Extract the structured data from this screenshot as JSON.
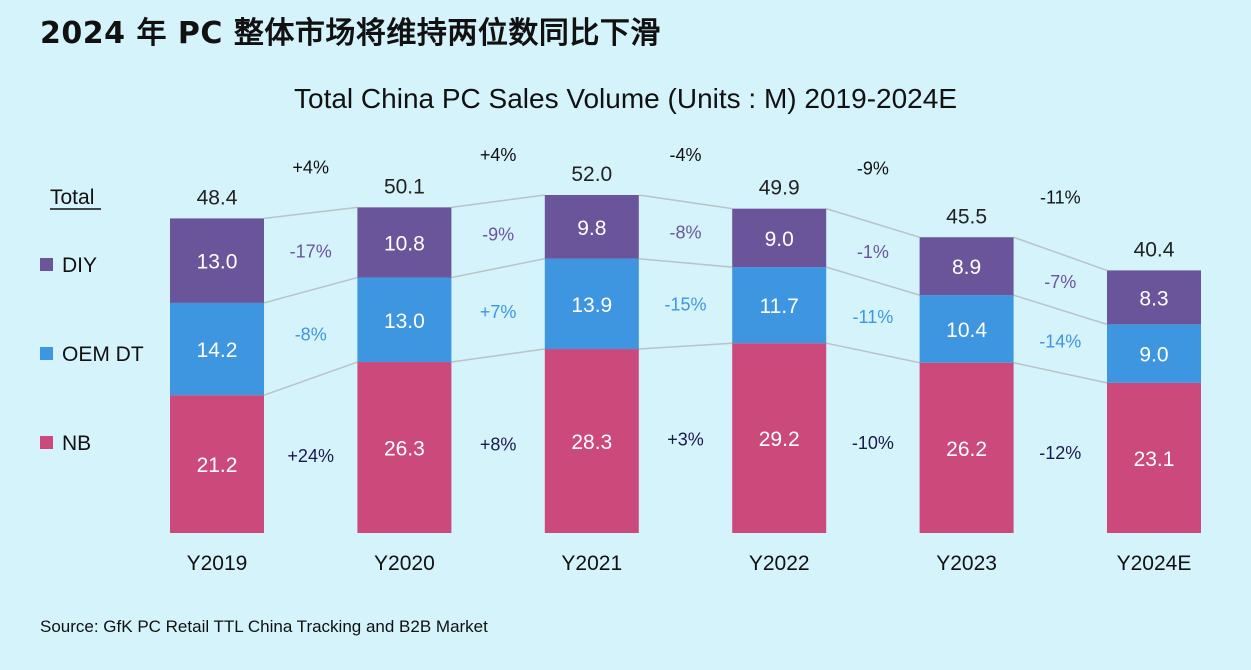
{
  "page": {
    "title": "2024 年 PC 整体市场将维持两位数同比下滑",
    "source": "Source: GfK PC Retail TTL China Tracking and B2B Market"
  },
  "chart_data": {
    "type": "bar",
    "stacked": true,
    "title": "Total China PC Sales Volume (Units : M)  2019-2024E",
    "categories": [
      "Y2019",
      "Y2020",
      "Y2021",
      "Y2022",
      "Y2023",
      "Y2024E"
    ],
    "legend_title": "Total",
    "legend_position": "left",
    "totals": [
      "48.4",
      "50.1",
      "52.0",
      "49.9",
      "45.5",
      "40.4"
    ],
    "total_growth": [
      "+4%",
      "+4%",
      "-4%",
      "-9%",
      "-11%"
    ],
    "series": [
      {
        "name": "NB",
        "color": "#cc4a7b",
        "values": [
          21.2,
          26.3,
          28.3,
          29.2,
          26.2,
          23.1
        ],
        "labels": [
          "21.2",
          "26.3",
          "28.3",
          "29.2",
          "26.2",
          "23.1"
        ],
        "growth": [
          "+24%",
          "+8%",
          "+3%",
          "-10%",
          "-12%"
        ],
        "growth_color": "#1a1a4a"
      },
      {
        "name": "OEM DT",
        "color": "#3e96e0",
        "values": [
          14.2,
          13.0,
          13.9,
          11.7,
          10.4,
          9.0
        ],
        "labels": [
          "14.2",
          "13.0",
          "13.9",
          "11.7",
          "10.4",
          "9.0"
        ],
        "growth": [
          "-8%",
          "+7%",
          "-15%",
          "-11%",
          "-14%"
        ],
        "growth_color": "#3e96e0"
      },
      {
        "name": "DIY",
        "color": "#6b559a",
        "values": [
          13.0,
          10.8,
          9.8,
          9.0,
          8.9,
          8.3
        ],
        "labels": [
          "13.0",
          "10.8",
          "9.8",
          "9.0",
          "8.9",
          "8.3"
        ],
        "growth": [
          "-17%",
          "-9%",
          "-8%",
          "-1%",
          "-7%"
        ],
        "growth_color": "#6b559a"
      }
    ]
  }
}
